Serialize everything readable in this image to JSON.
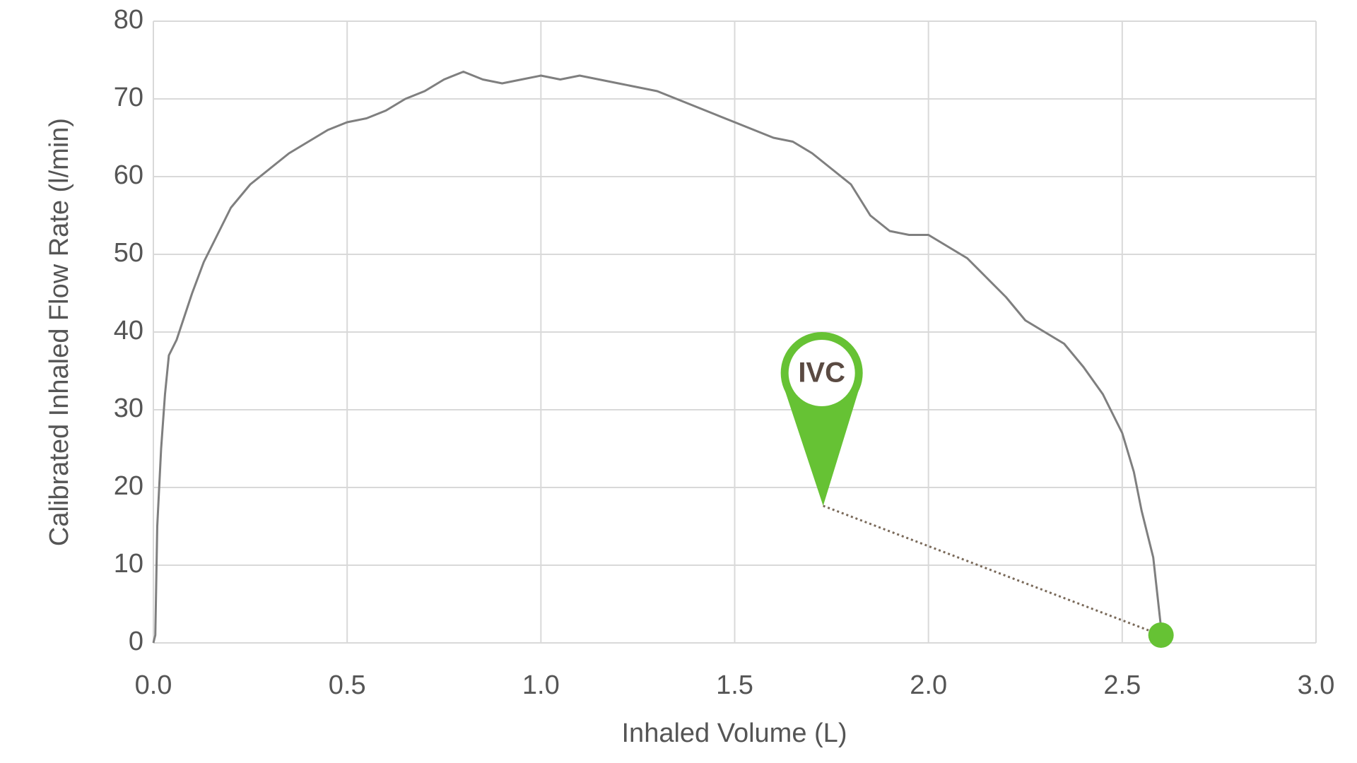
{
  "chart_data": {
    "type": "line",
    "x_label": "Inhaled Volume (L)",
    "y_label": "Calibrated Inhaled Flow Rate (l/min)",
    "x": [
      0.0,
      0.005,
      0.01,
      0.02,
      0.03,
      0.04,
      0.06,
      0.08,
      0.1,
      0.13,
      0.16,
      0.2,
      0.25,
      0.3,
      0.35,
      0.4,
      0.45,
      0.5,
      0.55,
      0.6,
      0.65,
      0.7,
      0.75,
      0.8,
      0.85,
      0.9,
      0.95,
      1.0,
      1.05,
      1.1,
      1.15,
      1.2,
      1.25,
      1.3,
      1.35,
      1.4,
      1.45,
      1.5,
      1.55,
      1.6,
      1.65,
      1.7,
      1.75,
      1.8,
      1.85,
      1.9,
      1.95,
      2.0,
      2.05,
      2.1,
      2.15,
      2.2,
      2.25,
      2.3,
      2.35,
      2.4,
      2.45,
      2.5,
      2.53,
      2.55,
      2.58,
      2.6
    ],
    "values": [
      0,
      1,
      15,
      25,
      32,
      37,
      39,
      42,
      45,
      49,
      52,
      56,
      59,
      61,
      63,
      64.5,
      66,
      67,
      67.5,
      68.5,
      70,
      71,
      72.5,
      73.5,
      72.5,
      72,
      72.5,
      73,
      72.5,
      73,
      72.5,
      72,
      71.5,
      71,
      70,
      69,
      68,
      67,
      66,
      65,
      64.5,
      63,
      61,
      59,
      55,
      53,
      52.5,
      52.5,
      51,
      49.5,
      47,
      44.5,
      41.5,
      40,
      38.5,
      35.5,
      32,
      27,
      22,
      17,
      11,
      2
    ],
    "color": "#7f7f7f",
    "xlim": [
      0,
      3
    ],
    "xticks": [
      {
        "value": 0,
        "label": "0.0"
      },
      0.5,
      {
        "value": 1,
        "label": "1.0"
      },
      1.5,
      {
        "value": 2,
        "label": "2.0"
      },
      2.5,
      {
        "value": 3,
        "label": "3.0"
      }
    ],
    "ylim": [
      0,
      80
    ],
    "yticks": [
      0,
      10,
      20,
      30,
      40,
      50,
      60,
      70,
      80
    ],
    "grid": true,
    "annotation": {
      "text": "IVC",
      "x": 2.6,
      "y": 1,
      "color": "#66c234"
    }
  }
}
